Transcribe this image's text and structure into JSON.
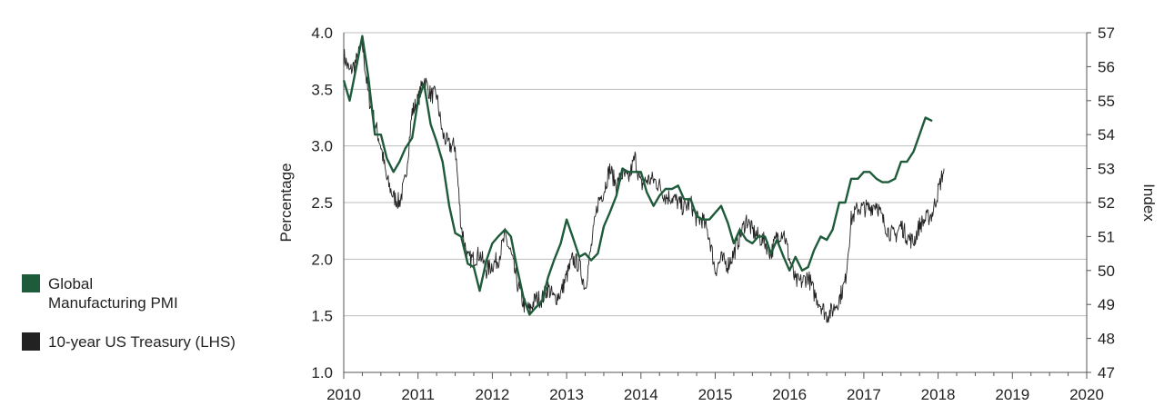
{
  "legend": {
    "items": [
      {
        "label": "Global\nManufacturing PMI",
        "color": "#1e5b3a"
      },
      {
        "label": "10-year US Treasury (LHS)",
        "color": "#222222"
      }
    ]
  },
  "chart_data": {
    "type": "line",
    "title": "",
    "xlabel": "",
    "ylabel": "Percentage",
    "y2label": "Index",
    "xlim": [
      2010,
      2020
    ],
    "ylim": [
      1.0,
      4.0
    ],
    "y2lim": [
      47,
      57
    ],
    "x_ticks": [
      "2010",
      "2011",
      "2012",
      "2013",
      "2014",
      "2015",
      "2016",
      "2017",
      "2018",
      "2019",
      "2020"
    ],
    "y_ticks": [
      "1.0",
      "1.5",
      "2.0",
      "2.5",
      "3.0",
      "3.5",
      "4.0"
    ],
    "y2_ticks": [
      "47",
      "48",
      "49",
      "50",
      "51",
      "52",
      "53",
      "54",
      "55",
      "56",
      "57"
    ],
    "grid": "horizontal",
    "series": [
      {
        "name": "Global Manufacturing PMI",
        "axis": "right",
        "color": "#1e5b3a",
        "x": [
          2010.0,
          2010.08,
          2010.17,
          2010.25,
          2010.33,
          2010.42,
          2010.5,
          2010.58,
          2010.67,
          2010.75,
          2010.83,
          2010.92,
          2011.0,
          2011.08,
          2011.17,
          2011.25,
          2011.33,
          2011.42,
          2011.5,
          2011.58,
          2011.67,
          2011.75,
          2011.83,
          2011.92,
          2012.0,
          2012.08,
          2012.17,
          2012.25,
          2012.33,
          2012.42,
          2012.5,
          2012.58,
          2012.67,
          2012.75,
          2012.83,
          2012.92,
          2013.0,
          2013.08,
          2013.17,
          2013.25,
          2013.33,
          2013.42,
          2013.5,
          2013.58,
          2013.67,
          2013.75,
          2013.83,
          2013.92,
          2014.0,
          2014.08,
          2014.17,
          2014.25,
          2014.33,
          2014.42,
          2014.5,
          2014.58,
          2014.67,
          2014.75,
          2014.83,
          2014.92,
          2015.0,
          2015.08,
          2015.17,
          2015.25,
          2015.33,
          2015.42,
          2015.5,
          2015.58,
          2015.67,
          2015.75,
          2015.83,
          2015.92,
          2016.0,
          2016.08,
          2016.17,
          2016.25,
          2016.33,
          2016.42,
          2016.5,
          2016.58,
          2016.67,
          2016.75,
          2016.83,
          2016.92,
          2017.0,
          2017.08,
          2017.17,
          2017.25,
          2017.33,
          2017.42,
          2017.5,
          2017.58,
          2017.67,
          2017.75,
          2017.83,
          2017.92,
          2018.0
        ],
        "values": [
          55.6,
          55.0,
          56.0,
          56.9,
          55.7,
          54.0,
          54.0,
          53.3,
          52.9,
          53.2,
          53.6,
          53.9,
          55.0,
          55.5,
          54.3,
          53.8,
          53.2,
          51.9,
          51.1,
          51.0,
          50.2,
          50.1,
          49.4,
          50.3,
          50.8,
          51.0,
          51.2,
          51.0,
          50.1,
          49.2,
          48.7,
          48.9,
          49.1,
          49.8,
          50.3,
          50.8,
          51.5,
          51.0,
          50.4,
          50.5,
          50.3,
          50.5,
          51.3,
          51.7,
          52.2,
          53.0,
          52.9,
          52.9,
          52.9,
          52.3,
          51.9,
          52.2,
          52.4,
          52.4,
          52.5,
          52.1,
          52.1,
          51.6,
          51.5,
          51.5,
          51.7,
          51.9,
          51.4,
          50.8,
          51.2,
          50.9,
          50.8,
          51.0,
          51.0,
          50.5,
          50.9,
          50.4,
          50.0,
          50.4,
          50.0,
          50.1,
          50.6,
          51.0,
          50.9,
          51.2,
          52.0,
          52.0,
          52.7,
          52.7,
          52.9,
          52.9,
          52.7,
          52.6,
          52.6,
          52.7,
          53.2,
          53.2,
          53.5,
          54.0,
          54.5,
          54.4,
          null
        ]
      },
      {
        "name": "10-year US Treasury (LHS)",
        "axis": "left",
        "color": "#222222",
        "x": [
          2010.0,
          2010.08,
          2010.17,
          2010.25,
          2010.33,
          2010.42,
          2010.5,
          2010.58,
          2010.67,
          2010.75,
          2010.83,
          2010.92,
          2011.0,
          2011.08,
          2011.17,
          2011.25,
          2011.33,
          2011.42,
          2011.5,
          2011.58,
          2011.67,
          2011.75,
          2011.83,
          2011.92,
          2012.0,
          2012.08,
          2012.17,
          2012.25,
          2012.33,
          2012.42,
          2012.5,
          2012.58,
          2012.67,
          2012.75,
          2012.83,
          2012.92,
          2013.0,
          2013.08,
          2013.17,
          2013.25,
          2013.33,
          2013.42,
          2013.5,
          2013.58,
          2013.67,
          2013.75,
          2013.83,
          2013.92,
          2014.0,
          2014.08,
          2014.17,
          2014.25,
          2014.33,
          2014.42,
          2014.5,
          2014.58,
          2014.67,
          2014.75,
          2014.83,
          2014.92,
          2015.0,
          2015.08,
          2015.17,
          2015.25,
          2015.33,
          2015.42,
          2015.5,
          2015.58,
          2015.67,
          2015.75,
          2015.83,
          2015.92,
          2016.0,
          2016.08,
          2016.17,
          2016.25,
          2016.33,
          2016.42,
          2016.5,
          2016.58,
          2016.67,
          2016.75,
          2016.83,
          2016.92,
          2017.0,
          2017.08,
          2017.17,
          2017.25,
          2017.33,
          2017.42,
          2017.5,
          2017.58,
          2017.67,
          2017.75,
          2017.83,
          2017.92,
          2018.0,
          2018.08
        ],
        "values": [
          3.8,
          3.65,
          3.75,
          3.9,
          3.45,
          3.2,
          3.0,
          2.7,
          2.55,
          2.5,
          2.7,
          3.3,
          3.4,
          3.6,
          3.45,
          3.45,
          3.1,
          3.0,
          3.0,
          2.3,
          2.0,
          2.0,
          2.05,
          1.9,
          1.95,
          2.0,
          2.2,
          2.05,
          1.8,
          1.6,
          1.55,
          1.65,
          1.65,
          1.75,
          1.65,
          1.7,
          1.85,
          2.0,
          1.95,
          1.75,
          2.1,
          2.5,
          2.6,
          2.8,
          2.65,
          2.75,
          2.7,
          2.9,
          2.65,
          2.7,
          2.7,
          2.65,
          2.55,
          2.55,
          2.5,
          2.45,
          2.5,
          2.35,
          2.35,
          2.2,
          1.9,
          2.0,
          1.95,
          2.05,
          2.2,
          2.35,
          2.25,
          2.2,
          2.15,
          2.05,
          2.2,
          2.25,
          2.0,
          1.8,
          1.8,
          1.85,
          1.7,
          1.6,
          1.5,
          1.55,
          1.65,
          1.8,
          2.35,
          2.45,
          2.45,
          2.45,
          2.5,
          2.35,
          2.25,
          2.2,
          2.3,
          2.2,
          2.15,
          2.3,
          2.35,
          2.4,
          2.6,
          2.8
        ]
      }
    ]
  }
}
